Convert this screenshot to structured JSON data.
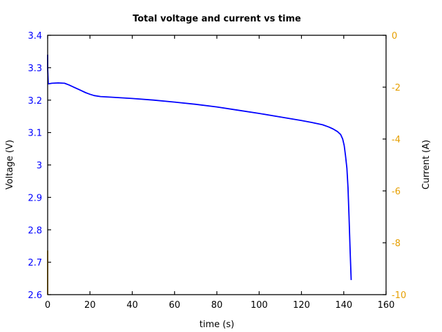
{
  "chart_data": {
    "type": "line",
    "title": "Total voltage and current vs time",
    "xlabel": "time (s)",
    "ylabel": "Voltage (V)",
    "y2label": "Current (A)",
    "xlim": [
      0,
      160
    ],
    "ylim": [
      2.6,
      3.4
    ],
    "y2lim": [
      -10,
      0
    ],
    "xticks": [
      "0",
      "20",
      "40",
      "60",
      "80",
      "100",
      "120",
      "140",
      "160"
    ],
    "yticks": [
      "2.6",
      "2.7",
      "2.8",
      "2.9",
      "3",
      "3.1",
      "3.2",
      "3.3",
      "3.4"
    ],
    "y2ticks": [
      "-10",
      "-8",
      "-6",
      "-4",
      "-2",
      "0"
    ],
    "grid": false,
    "legend": null,
    "series": [
      {
        "name": "Voltage",
        "axis": "left",
        "color": "#0000ff",
        "x": [
          0,
          0,
          0.3,
          2,
          5,
          8,
          10,
          13,
          15,
          18,
          20,
          22,
          25,
          30,
          40,
          50,
          60,
          70,
          80,
          90,
          100,
          110,
          120,
          125,
          130,
          133,
          135,
          137,
          138.5,
          139.5,
          140.2,
          140.8,
          141.5,
          142,
          142.5,
          143,
          143.5
        ],
        "values": [
          3.34,
          3.3,
          3.25,
          3.252,
          3.253,
          3.252,
          3.247,
          3.238,
          3.232,
          3.223,
          3.218,
          3.214,
          3.211,
          3.209,
          3.205,
          3.2,
          3.194,
          3.187,
          3.179,
          3.169,
          3.159,
          3.148,
          3.137,
          3.131,
          3.124,
          3.117,
          3.111,
          3.103,
          3.094,
          3.08,
          3.06,
          3.03,
          2.99,
          2.93,
          2.84,
          2.74,
          2.645
        ]
      },
      {
        "name": "Current",
        "axis": "right",
        "color": "#e69f00",
        "x": [
          0,
          0
        ],
        "values": [
          -10,
          -8.3
        ]
      }
    ]
  },
  "colors": {
    "voltage": "#0000ff",
    "current": "#e69f00",
    "axis": "#000000"
  }
}
